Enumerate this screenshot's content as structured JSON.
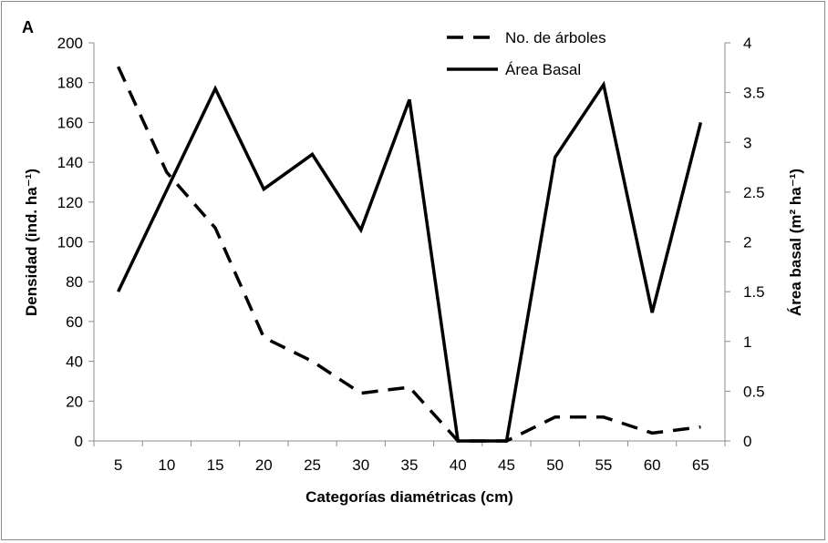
{
  "chart_data": {
    "type": "line",
    "panel_label": "A",
    "categories": [
      "5",
      "10",
      "15",
      "20",
      "25",
      "30",
      "35",
      "40",
      "45",
      "50",
      "55",
      "60",
      "65"
    ],
    "series": [
      {
        "name": "No. de árboles",
        "axis": "left",
        "style": "dashed",
        "color": "#000000",
        "values": [
          188,
          135,
          107,
          52,
          40,
          24,
          27,
          0,
          0,
          12,
          12,
          4,
          7
        ]
      },
      {
        "name": "Área Basal",
        "axis": "right",
        "style": "solid",
        "color": "#000000",
        "values": [
          1.5,
          2.52,
          3.54,
          2.53,
          2.88,
          2.12,
          3.43,
          0,
          0,
          2.85,
          3.58,
          1.29,
          3.2
        ]
      }
    ],
    "xlabel": "Categorías diamétricas (cm)",
    "ylabel": "Densidad (ind. ha⁻¹)",
    "ylabel_right": "Área basal (m² ha⁻¹)",
    "ylim": [
      0,
      200
    ],
    "ylim_right": [
      0,
      4
    ],
    "y_ticks": [
      "0",
      "20",
      "40",
      "60",
      "80",
      "100",
      "120",
      "140",
      "160",
      "180",
      "200"
    ],
    "y_ticks_right": [
      "0",
      "0.5",
      "1",
      "1.5",
      "2",
      "2.5",
      "3",
      "3.5",
      "4"
    ],
    "grid": false,
    "legend_position": "top-center"
  }
}
